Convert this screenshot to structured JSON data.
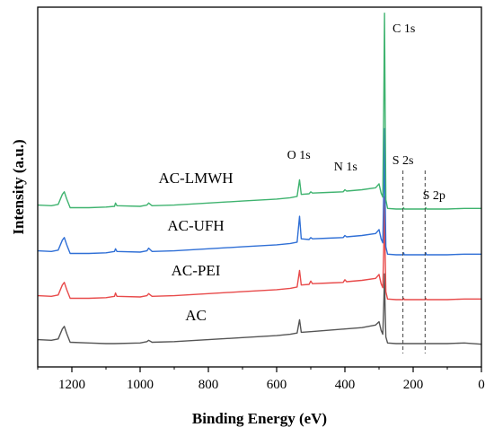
{
  "chart_data": {
    "type": "line",
    "xlabel": "Binding Energy (eV)",
    "ylabel": "Intensity (a.u.)",
    "xlim": [
      1300,
      0
    ],
    "x_reversed": true,
    "x_ticks": [
      1200,
      1000,
      800,
      600,
      400,
      200,
      0
    ],
    "y_ticks_shown": false,
    "grid": false,
    "series": [
      {
        "name": "AC",
        "color": "#555555",
        "points": [
          [
            1300,
            6
          ],
          [
            1260,
            5
          ],
          [
            1240,
            7
          ],
          [
            1228,
            22
          ],
          [
            1222,
            26
          ],
          [
            1215,
            15
          ],
          [
            1205,
            2
          ],
          [
            1150,
            1
          ],
          [
            1100,
            0
          ],
          [
            1075,
            0
          ],
          [
            1000,
            1
          ],
          [
            980,
            3
          ],
          [
            975,
            5
          ],
          [
            965,
            2
          ],
          [
            900,
            3
          ],
          [
            800,
            6
          ],
          [
            700,
            9
          ],
          [
            600,
            12
          ],
          [
            560,
            14
          ],
          [
            540,
            16
          ],
          [
            533,
            36
          ],
          [
            528,
            17
          ],
          [
            500,
            18
          ],
          [
            450,
            20
          ],
          [
            400,
            22
          ],
          [
            350,
            24
          ],
          [
            310,
            28
          ],
          [
            300,
            33
          ],
          [
            294,
            20
          ],
          [
            289,
            14
          ],
          [
            286,
            60
          ],
          [
            284,
            105
          ],
          [
            282,
            50
          ],
          [
            280,
            10
          ],
          [
            275,
            1
          ],
          [
            250,
            0
          ],
          [
            200,
            0
          ],
          [
            100,
            0
          ],
          [
            50,
            1
          ],
          [
            0,
            -1
          ]
        ]
      },
      {
        "name": "AC-PEI",
        "color": "#e84a4a",
        "points": [
          [
            1300,
            6
          ],
          [
            1260,
            5
          ],
          [
            1240,
            7
          ],
          [
            1228,
            22
          ],
          [
            1222,
            26
          ],
          [
            1215,
            15
          ],
          [
            1205,
            2
          ],
          [
            1150,
            2
          ],
          [
            1100,
            3
          ],
          [
            1075,
            5
          ],
          [
            1072,
            10
          ],
          [
            1068,
            5
          ],
          [
            1000,
            4
          ],
          [
            980,
            6
          ],
          [
            975,
            9
          ],
          [
            965,
            5
          ],
          [
            900,
            6
          ],
          [
            800,
            9
          ],
          [
            700,
            12
          ],
          [
            600,
            15
          ],
          [
            560,
            17
          ],
          [
            540,
            19
          ],
          [
            533,
            44
          ],
          [
            528,
            22
          ],
          [
            505,
            23
          ],
          [
            500,
            28
          ],
          [
            495,
            24
          ],
          [
            450,
            25
          ],
          [
            405,
            26
          ],
          [
            400,
            30
          ],
          [
            395,
            27
          ],
          [
            350,
            29
          ],
          [
            310,
            32
          ],
          [
            300,
            38
          ],
          [
            294,
            24
          ],
          [
            289,
            18
          ],
          [
            286,
            80
          ],
          [
            284,
            155
          ],
          [
            282,
            70
          ],
          [
            280,
            12
          ],
          [
            275,
            1
          ],
          [
            250,
            0
          ],
          [
            230,
            0
          ],
          [
            228,
            2
          ],
          [
            226,
            0
          ],
          [
            200,
            0
          ],
          [
            165,
            0
          ],
          [
            163,
            2
          ],
          [
            161,
            0
          ],
          [
            100,
            0
          ],
          [
            50,
            1
          ],
          [
            0,
            1
          ]
        ]
      },
      {
        "name": "AC-UFH",
        "color": "#2f6fd6",
        "points": [
          [
            1300,
            6
          ],
          [
            1260,
            5
          ],
          [
            1240,
            7
          ],
          [
            1228,
            22
          ],
          [
            1222,
            26
          ],
          [
            1215,
            15
          ],
          [
            1205,
            2
          ],
          [
            1150,
            2
          ],
          [
            1100,
            3
          ],
          [
            1075,
            5
          ],
          [
            1072,
            9
          ],
          [
            1068,
            5
          ],
          [
            1000,
            4
          ],
          [
            980,
            6
          ],
          [
            975,
            10
          ],
          [
            965,
            5
          ],
          [
            900,
            6
          ],
          [
            800,
            9
          ],
          [
            700,
            12
          ],
          [
            600,
            15
          ],
          [
            560,
            17
          ],
          [
            540,
            19
          ],
          [
            533,
            58
          ],
          [
            528,
            24
          ],
          [
            505,
            23
          ],
          [
            500,
            26
          ],
          [
            495,
            24
          ],
          [
            450,
            25
          ],
          [
            405,
            26
          ],
          [
            400,
            29
          ],
          [
            395,
            27
          ],
          [
            350,
            29
          ],
          [
            310,
            32
          ],
          [
            300,
            38
          ],
          [
            294,
            24
          ],
          [
            289,
            18
          ],
          [
            286,
            100
          ],
          [
            284,
            190
          ],
          [
            282,
            85
          ],
          [
            280,
            12
          ],
          [
            275,
            1
          ],
          [
            250,
            0
          ],
          [
            230,
            0
          ],
          [
            228,
            3
          ],
          [
            226,
            0
          ],
          [
            200,
            0
          ],
          [
            165,
            0
          ],
          [
            163,
            3
          ],
          [
            161,
            0
          ],
          [
            100,
            0
          ],
          [
            50,
            1
          ],
          [
            0,
            1
          ]
        ]
      },
      {
        "name": "AC-LMWH",
        "color": "#3fb36f",
        "points": [
          [
            1300,
            6
          ],
          [
            1260,
            5
          ],
          [
            1240,
            7
          ],
          [
            1228,
            22
          ],
          [
            1222,
            26
          ],
          [
            1215,
            15
          ],
          [
            1205,
            2
          ],
          [
            1150,
            2
          ],
          [
            1100,
            3
          ],
          [
            1075,
            4
          ],
          [
            1072,
            9
          ],
          [
            1068,
            5
          ],
          [
            1000,
            4
          ],
          [
            980,
            6
          ],
          [
            975,
            9
          ],
          [
            965,
            5
          ],
          [
            900,
            6
          ],
          [
            800,
            9
          ],
          [
            700,
            12
          ],
          [
            600,
            15
          ],
          [
            560,
            17
          ],
          [
            540,
            19
          ],
          [
            533,
            44
          ],
          [
            528,
            22
          ],
          [
            505,
            23
          ],
          [
            500,
            26
          ],
          [
            495,
            24
          ],
          [
            450,
            25
          ],
          [
            405,
            26
          ],
          [
            400,
            29
          ],
          [
            395,
            27
          ],
          [
            350,
            29
          ],
          [
            310,
            32
          ],
          [
            300,
            38
          ],
          [
            294,
            24
          ],
          [
            289,
            18
          ],
          [
            286,
            160
          ],
          [
            284,
            295
          ],
          [
            282,
            150
          ],
          [
            280,
            14
          ],
          [
            275,
            1
          ],
          [
            250,
            0
          ],
          [
            230,
            0
          ],
          [
            228,
            2
          ],
          [
            226,
            0
          ],
          [
            200,
            0
          ],
          [
            165,
            0
          ],
          [
            163,
            2
          ],
          [
            161,
            0
          ],
          [
            100,
            0
          ],
          [
            50,
            1
          ],
          [
            0,
            1
          ]
        ]
      }
    ],
    "peak_labels": [
      {
        "text": "C 1s",
        "x": 285
      },
      {
        "text": "O 1s",
        "x": 535
      },
      {
        "text": "N 1s",
        "x": 398
      },
      {
        "text": "S 2s",
        "x": 230
      },
      {
        "text": "S 2p",
        "x": 165
      }
    ],
    "reference_lines": [
      {
        "x": 230,
        "style": "dashed"
      },
      {
        "x": 165,
        "style": "dashed"
      }
    ]
  }
}
